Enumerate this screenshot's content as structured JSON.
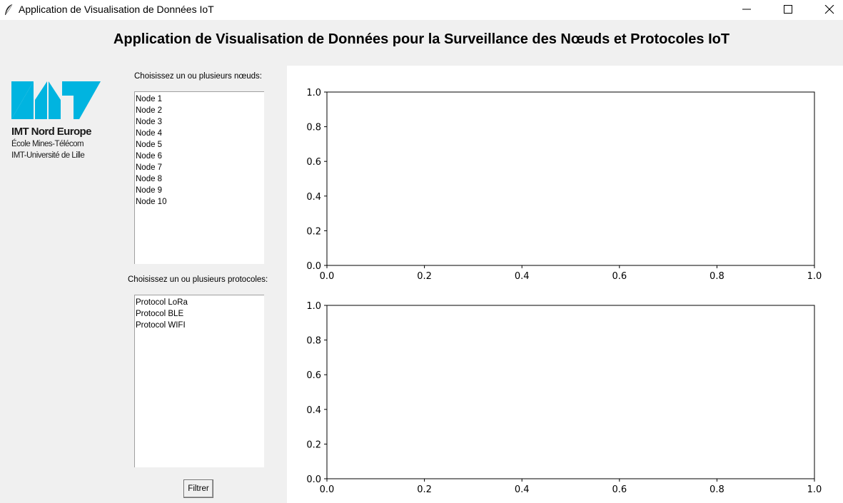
{
  "window": {
    "title": "Application de Visualisation de Données IoT",
    "controls": [
      "minimize",
      "maximize",
      "close"
    ]
  },
  "header": {
    "title": "Application de Visualisation de Données pour la Surveillance des Nœuds et Protocoles IoT"
  },
  "logo": {
    "name": "IMT Nord Europe",
    "line1": "École Mines-Télécom",
    "line2": "IMT-Université de Lille",
    "color": "#00b4e0"
  },
  "nodes": {
    "label": "Choisissez un ou plusieurs nœuds:",
    "items": [
      "Node 1",
      "Node 2",
      "Node 3",
      "Node 4",
      "Node 5",
      "Node 6",
      "Node 7",
      "Node 8",
      "Node 9",
      "Node 10"
    ]
  },
  "protocols": {
    "label": "Choisissez un ou plusieurs protocoles:",
    "items": [
      "Protocol LoRa",
      "Protocol BLE",
      "Protocol WIFI"
    ]
  },
  "filter_button": {
    "label": "Filtrer"
  },
  "chart_data": [
    {
      "type": "line",
      "series": [],
      "xlim": [
        0,
        1
      ],
      "ylim": [
        0,
        1
      ],
      "xticks": [
        "0.0",
        "0.2",
        "0.4",
        "0.6",
        "0.8",
        "1.0"
      ],
      "yticks": [
        "0.0",
        "0.2",
        "0.4",
        "0.6",
        "0.8",
        "1.0"
      ],
      "grid": false
    },
    {
      "type": "line",
      "series": [],
      "xlim": [
        0,
        1
      ],
      "ylim": [
        0,
        1
      ],
      "xticks": [
        "0.0",
        "0.2",
        "0.4",
        "0.6",
        "0.8",
        "1.0"
      ],
      "yticks": [
        "0.0",
        "0.2",
        "0.4",
        "0.6",
        "0.8",
        "1.0"
      ],
      "grid": false
    }
  ]
}
